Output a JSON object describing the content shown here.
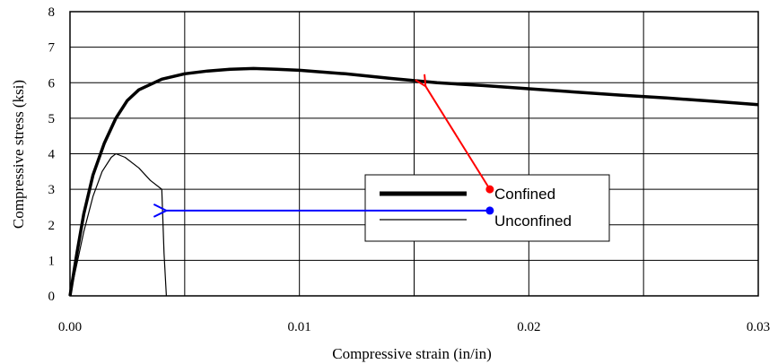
{
  "chart_data": {
    "type": "line",
    "xlabel": "Compressive strain (in/in)",
    "ylabel": "Compressive stress (ksi)",
    "xlim": [
      0,
      0.03
    ],
    "ylim": [
      0,
      8
    ],
    "x_ticks": [
      0.0,
      0.005,
      0.01,
      0.015,
      0.02,
      0.025,
      0.03
    ],
    "x_tick_labels": [
      "0.00",
      "",
      "0.01",
      "",
      "0.02",
      "",
      "0.03"
    ],
    "y_ticks": [
      0,
      1,
      2,
      3,
      4,
      5,
      6,
      7,
      8
    ],
    "y_tick_labels": [
      "0",
      "1",
      "2",
      "3",
      "4",
      "5",
      "6",
      "7",
      "8"
    ],
    "grid": true,
    "legend": "center-right",
    "series": [
      {
        "name": "Confined",
        "color": "#000000",
        "style": "thick",
        "points": [
          [
            0,
            0
          ],
          [
            0.0003,
            1.2
          ],
          [
            0.0006,
            2.3
          ],
          [
            0.001,
            3.4
          ],
          [
            0.0015,
            4.3
          ],
          [
            0.002,
            5.0
          ],
          [
            0.0025,
            5.5
          ],
          [
            0.003,
            5.8
          ],
          [
            0.004,
            6.1
          ],
          [
            0.005,
            6.25
          ],
          [
            0.006,
            6.33
          ],
          [
            0.007,
            6.38
          ],
          [
            0.008,
            6.4
          ],
          [
            0.009,
            6.38
          ],
          [
            0.01,
            6.35
          ],
          [
            0.012,
            6.25
          ],
          [
            0.014,
            6.12
          ],
          [
            0.016,
            6.0
          ],
          [
            0.018,
            5.92
          ],
          [
            0.02,
            5.83
          ],
          [
            0.022,
            5.74
          ],
          [
            0.024,
            5.65
          ],
          [
            0.026,
            5.57
          ],
          [
            0.028,
            5.48
          ],
          [
            0.03,
            5.38
          ]
        ]
      },
      {
        "name": "Unconfined",
        "color": "#000000",
        "style": "thin",
        "points": [
          [
            0,
            0
          ],
          [
            0.0003,
            0.9
          ],
          [
            0.0006,
            1.8
          ],
          [
            0.001,
            2.8
          ],
          [
            0.0014,
            3.5
          ],
          [
            0.0018,
            3.9
          ],
          [
            0.002,
            4.0
          ],
          [
            0.0024,
            3.9
          ],
          [
            0.003,
            3.6
          ],
          [
            0.0035,
            3.25
          ],
          [
            0.004,
            3.0
          ],
          [
            0.0041,
            1.2
          ],
          [
            0.0042,
            0
          ]
        ]
      }
    ],
    "annotations": [
      {
        "target": "Confined",
        "color": "#ff0000",
        "from": [
          0.0183,
          3.0
        ],
        "to": [
          0.0155,
          5.9
        ]
      },
      {
        "target": "Unconfined",
        "color": "#0000ff",
        "from": [
          0.0183,
          2.4
        ],
        "to": [
          0.0042,
          2.4
        ]
      }
    ]
  }
}
